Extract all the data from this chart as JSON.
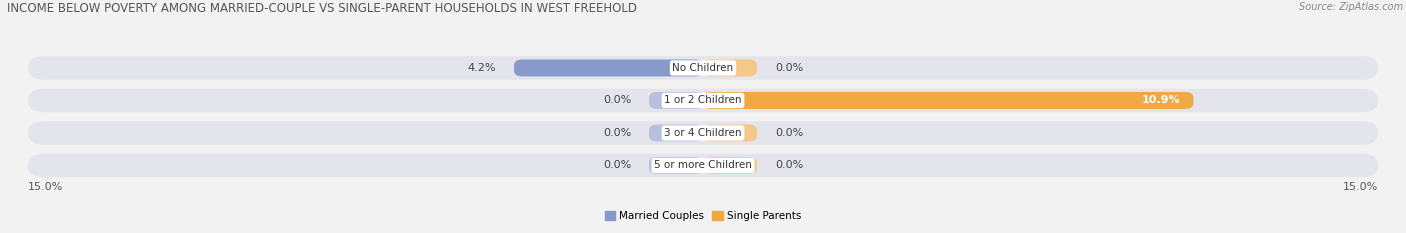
{
  "title": "INCOME BELOW POVERTY AMONG MARRIED-COUPLE VS SINGLE-PARENT HOUSEHOLDS IN WEST FREEHOLD",
  "source": "Source: ZipAtlas.com",
  "categories": [
    "No Children",
    "1 or 2 Children",
    "3 or 4 Children",
    "5 or more Children"
  ],
  "married_values": [
    4.2,
    0.0,
    0.0,
    0.0
  ],
  "single_values": [
    0.0,
    10.9,
    0.0,
    0.0
  ],
  "married_color": "#8899cc",
  "single_color": "#f0a840",
  "married_color_light": "#b8c0e0",
  "single_color_light": "#f5c888",
  "married_label": "Married Couples",
  "single_label": "Single Parents",
  "axis_max": 15.0,
  "background_color": "#f2f2f2",
  "row_bg_color": "#e4e4ec",
  "title_fontsize": 8.5,
  "source_fontsize": 7,
  "label_fontsize": 7.5,
  "tick_fontsize": 8,
  "category_fontsize": 7.5,
  "value_label_fontsize": 8
}
